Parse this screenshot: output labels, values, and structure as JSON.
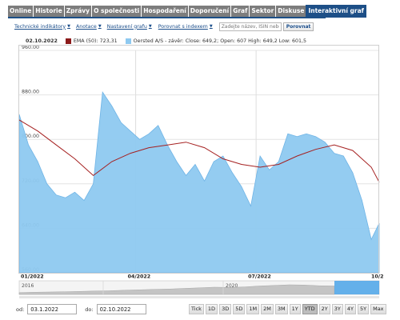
{
  "tabs": [
    {
      "label": "Online"
    },
    {
      "label": "Historie"
    },
    {
      "label": "Zprávy"
    },
    {
      "label": "O společnosti"
    },
    {
      "label": "Hospodaření"
    },
    {
      "label": "Doporučení"
    },
    {
      "label": "Graf"
    },
    {
      "label": "Sektor"
    },
    {
      "label": "Diskuse"
    },
    {
      "label": "Interaktivní graf",
      "active": true
    }
  ],
  "toolbar": {
    "indicators": "Technické indikátory",
    "annotations": "Anotace",
    "settings": "Nastavení grafu",
    "compare_index": "Porovnat s indexem",
    "search_placeholder": "Zadejte název, ISIN nebo ticker",
    "compare_button": "Porovnat"
  },
  "legend": {
    "date": "02.10.2022",
    "ema_label": "EMA (50): 723,31",
    "ema_color": "#8b1a1a",
    "price_label": "Oersted A/S - závěr: Close: 649,2; Open: 607 High: 649,2 Low: 601,5",
    "price_color": "#8ec9f0"
  },
  "chart_data": {
    "type": "area",
    "title": "",
    "ylim": [
      560,
      960
    ],
    "yticks": [
      "960.00",
      "880.00",
      "800.00",
      "720.00",
      "640.00",
      "560.00"
    ],
    "xticks": [
      "01/2022",
      "04/2022",
      "07/2022",
      "10/2"
    ],
    "series": [
      {
        "name": "Oersted A/S - závěr",
        "type": "area",
        "color": "#8ec9f0",
        "x": [
          "2022-01-03",
          "2022-01-10",
          "2022-01-17",
          "2022-01-24",
          "2022-01-31",
          "2022-02-07",
          "2022-02-14",
          "2022-02-21",
          "2022-02-28",
          "2022-03-07",
          "2022-03-14",
          "2022-03-21",
          "2022-03-28",
          "2022-04-04",
          "2022-04-11",
          "2022-04-18",
          "2022-04-25",
          "2022-05-02",
          "2022-05-09",
          "2022-05-16",
          "2022-05-23",
          "2022-05-30",
          "2022-06-06",
          "2022-06-13",
          "2022-06-20",
          "2022-06-27",
          "2022-07-04",
          "2022-07-11",
          "2022-07-18",
          "2022-07-25",
          "2022-08-01",
          "2022-08-08",
          "2022-08-15",
          "2022-08-22",
          "2022-08-29",
          "2022-09-05",
          "2022-09-12",
          "2022-09-19",
          "2022-09-26",
          "2022-10-02"
        ],
        "values": [
          845,
          790,
          760,
          720,
          700,
          695,
          705,
          690,
          720,
          885,
          860,
          830,
          815,
          800,
          810,
          825,
          790,
          760,
          735,
          755,
          725,
          760,
          770,
          740,
          715,
          680,
          770,
          745,
          760,
          810,
          805,
          810,
          805,
          795,
          775,
          770,
          740,
          690,
          620,
          649
        ]
      },
      {
        "name": "EMA (50)",
        "type": "line",
        "color": "#a52020",
        "x": [
          "2022-01-03",
          "2022-01-17",
          "2022-01-31",
          "2022-02-14",
          "2022-02-28",
          "2022-03-14",
          "2022-03-28",
          "2022-04-11",
          "2022-04-25",
          "2022-05-09",
          "2022-05-23",
          "2022-06-06",
          "2022-06-20",
          "2022-07-04",
          "2022-07-18",
          "2022-08-01",
          "2022-08-15",
          "2022-08-29",
          "2022-09-12",
          "2022-09-26",
          "2022-10-02"
        ],
        "values": [
          835,
          815,
          790,
          765,
          735,
          760,
          775,
          785,
          790,
          795,
          785,
          765,
          755,
          750,
          755,
          770,
          782,
          790,
          780,
          750,
          723
        ]
      }
    ]
  },
  "navigator": {
    "years": [
      "2016",
      "2020"
    ]
  },
  "dates": {
    "from_label": "od:",
    "from_value": "03.1.2022",
    "to_label": "do:",
    "to_value": "02.10.2022"
  },
  "periods": [
    "Tick",
    "1D",
    "3D",
    "5D",
    "1M",
    "2M",
    "3M",
    "1Y",
    "YTD",
    "2Y",
    "3Y",
    "4Y",
    "5Y",
    "Max"
  ],
  "active_period": "YTD"
}
